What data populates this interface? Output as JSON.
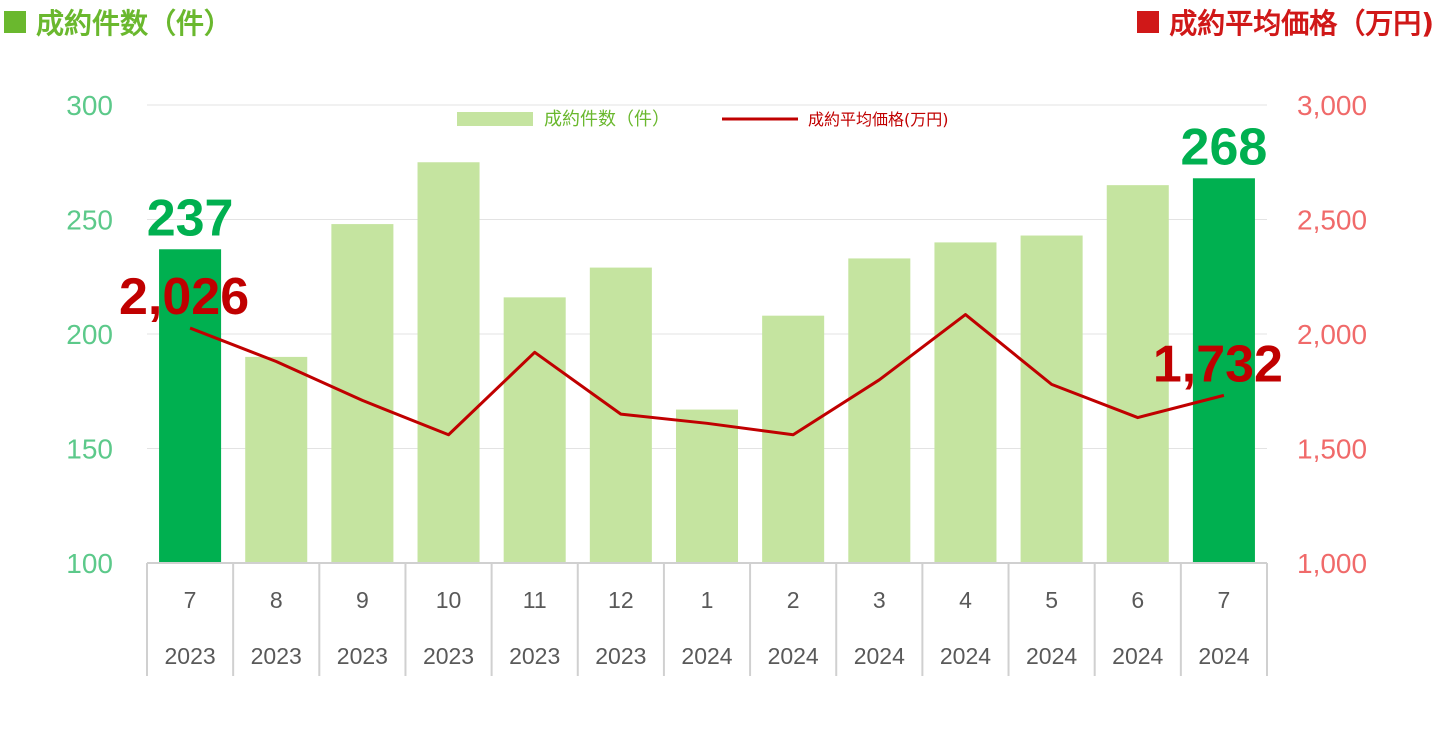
{
  "header": {
    "left_title": "成約件数（件）",
    "right_title": "成約平均価格（万円)",
    "left_color": "#6ab82e",
    "right_color": "#d01818"
  },
  "legend": {
    "bar_label": "成約件数（件）",
    "line_label": "成約平均価格(万円)"
  },
  "chart_data": {
    "type": "bar",
    "categories": [
      "7",
      "8",
      "9",
      "10",
      "11",
      "12",
      "1",
      "2",
      "3",
      "4",
      "5",
      "6",
      "7"
    ],
    "years": [
      "2023",
      "2023",
      "2023",
      "2023",
      "2023",
      "2023",
      "2024",
      "2024",
      "2024",
      "2024",
      "2024",
      "2024",
      "2024"
    ],
    "series": [
      {
        "name": "成約件数（件）",
        "type": "bar",
        "axis": "left",
        "values": [
          237,
          190,
          248,
          275,
          216,
          229,
          167,
          208,
          233,
          240,
          243,
          265,
          268
        ],
        "color": "#c5e4a0",
        "highlight_color": "#00b050",
        "highlight_indices": [
          0,
          12
        ]
      },
      {
        "name": "成約平均価格(万円)",
        "type": "line",
        "axis": "right",
        "values": [
          2026,
          1880,
          1710,
          1560,
          1920,
          1650,
          1610,
          1560,
          1800,
          2085,
          1780,
          1635,
          1732
        ],
        "color": "#c00000"
      }
    ],
    "y_left": {
      "ylim": [
        100,
        300
      ],
      "ticks": [
        "100",
        "150",
        "200",
        "250",
        "300"
      ]
    },
    "y_right": {
      "ylim": [
        1000,
        3000
      ],
      "ticks": [
        "1,000",
        "1,500",
        "2,000",
        "2,500",
        "3,000"
      ]
    },
    "annotations": [
      {
        "text": "237",
        "index": 0,
        "series": "bar"
      },
      {
        "text": "268",
        "index": 12,
        "series": "bar"
      },
      {
        "text": "2,026",
        "index": 0,
        "series": "line"
      },
      {
        "text": "1,732",
        "index": 12,
        "series": "line"
      }
    ],
    "grid": true,
    "legend_position": "top-center"
  }
}
